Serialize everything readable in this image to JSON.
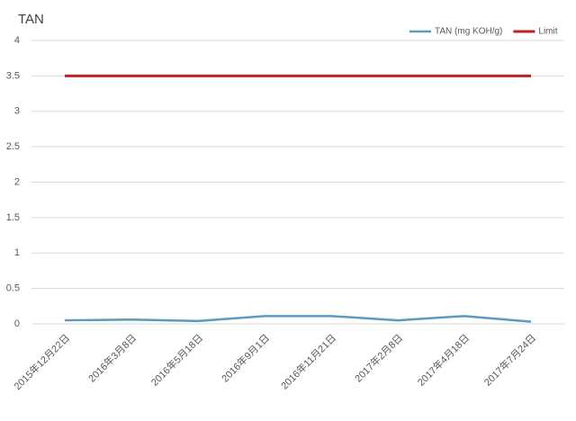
{
  "chart_data": {
    "type": "line",
    "title": "TAN",
    "categories": [
      "2015年12月22日",
      "2016年3月8日",
      "2016年5月18日",
      "2016年9月1日",
      "2016年11月21日",
      "2017年2月8日",
      "2017年4月18日",
      "2017年7月24日"
    ],
    "series": [
      {
        "name": "TAN (mg KOH/g)",
        "color": "#5b9bc0",
        "values": [
          0.05,
          0.06,
          0.04,
          0.11,
          0.11,
          0.05,
          0.11,
          0.03
        ]
      },
      {
        "name": "Limit",
        "color": "#c0221f",
        "values": [
          3.5,
          3.5,
          3.5,
          3.5,
          3.5,
          3.5,
          3.5,
          3.5
        ]
      }
    ],
    "ylim": [
      0,
      4
    ],
    "yticks": [
      0,
      0.5,
      1,
      1.5,
      2,
      2.5,
      3,
      3.5,
      4
    ],
    "grid": true,
    "legend": "top-right"
  }
}
